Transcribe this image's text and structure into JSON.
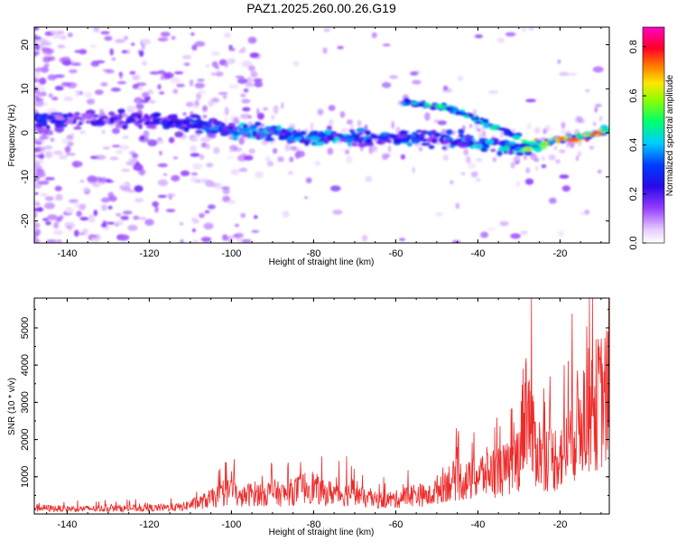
{
  "title": "PAZ1.2025.260.00.26.G19",
  "chart_data": [
    {
      "type": "heatmap",
      "xlabel": "Height of straight line (km)",
      "ylabel": "Frequency (Hz)",
      "xlim": [
        -148,
        -8
      ],
      "ylim": [
        -25,
        24
      ],
      "xticks": [
        -140,
        -120,
        -100,
        -80,
        -60,
        -40,
        -20
      ],
      "yticks": [
        20,
        10,
        0,
        -10,
        -20
      ],
      "grid": false,
      "colorbar": {
        "label": "Normalized spectral amplitude",
        "range": [
          0,
          0.88
        ],
        "ticks": [
          0.0,
          0.2,
          0.4,
          0.6,
          0.8
        ],
        "colormap": "rainbow (white→purple→blue→cyan→green→yellow→red→magenta)"
      },
      "ridge": {
        "x": [
          -148,
          -140,
          -130,
          -120,
          -110,
          -100,
          -90,
          -80,
          -70,
          -60,
          -55,
          -50,
          -45,
          -40,
          -35,
          -30,
          -25,
          -22,
          -20,
          -15,
          -10,
          -8
        ],
        "y": [
          3,
          3,
          3,
          3,
          2,
          1,
          0,
          -1,
          -1,
          -1,
          -1,
          -1.5,
          -2,
          -2.5,
          -3,
          -3.5,
          -3,
          -1.5,
          -1.5,
          -1,
          0,
          1
        ]
      },
      "ridge_amplitude": {
        "x": [
          -148,
          -140,
          -130,
          -120,
          -110,
          -100,
          -90,
          -80,
          -70,
          -60,
          -50,
          -45,
          -40,
          -35,
          -30,
          -25,
          -22,
          -20,
          -15,
          -10,
          -8
        ],
        "amp": [
          0.3,
          0.25,
          0.2,
          0.25,
          0.3,
          0.38,
          0.42,
          0.4,
          0.38,
          0.36,
          0.36,
          0.38,
          0.4,
          0.42,
          0.48,
          0.7,
          0.6,
          0.8,
          0.78,
          0.75,
          0.7
        ]
      },
      "secondary_ridge": {
        "x": [
          -58,
          -50,
          -45,
          -40,
          -35,
          -30
        ],
        "y": [
          7,
          6,
          5,
          3,
          1,
          -1
        ]
      }
    },
    {
      "type": "line",
      "xlabel": "Height of straight line (km)",
      "ylabel": "SNR (10 * v/v)",
      "xlim": [
        -148,
        -8
      ],
      "ylim": [
        0,
        5800
      ],
      "xticks": [
        -140,
        -120,
        -100,
        -80,
        -60,
        -40,
        -20
      ],
      "yticks": [
        1000,
        2000,
        3000,
        4000,
        5000
      ],
      "grid": false,
      "color": "#ee2b2b",
      "series": [
        {
          "x": [
            -148,
            -140,
            -130,
            -120,
            -112,
            -110,
            -108,
            -105,
            -102,
            -100,
            -98,
            -95,
            -92,
            -90,
            -88,
            -85,
            -82,
            -80,
            -78,
            -75,
            -72,
            -70,
            -68,
            -65,
            -62,
            -60,
            -58,
            -55,
            -52,
            -50,
            -48,
            -45,
            -42,
            -40,
            -38,
            -35,
            -32,
            -30,
            -28,
            -27,
            -25,
            -22,
            -20,
            -18,
            -15,
            -12,
            -10,
            -8
          ],
          "y": [
            180,
            150,
            160,
            170,
            200,
            280,
            320,
            450,
            560,
            720,
            450,
            600,
            580,
            650,
            560,
            650,
            780,
            800,
            600,
            620,
            560,
            700,
            450,
            400,
            420,
            420,
            500,
            580,
            500,
            700,
            900,
            1000,
            950,
            1100,
            1200,
            1250,
            1300,
            1700,
            3500,
            2200,
            1800,
            1600,
            1700,
            2000,
            2800,
            3100,
            3300,
            3400
          ]
        }
      ],
      "peaks": [
        {
          "x": -27,
          "y": 5800
        },
        {
          "x": -29,
          "y": 3900
        },
        {
          "x": -19,
          "y": 4000
        },
        {
          "x": -10,
          "y": 4400
        },
        {
          "x": -14,
          "y": 3800
        },
        {
          "x": -45,
          "y": 1800
        },
        {
          "x": -41,
          "y": 2200
        },
        {
          "x": -100,
          "y": 1150
        },
        {
          "x": -78,
          "y": 1550
        },
        {
          "x": -72,
          "y": 1550
        }
      ]
    }
  ]
}
